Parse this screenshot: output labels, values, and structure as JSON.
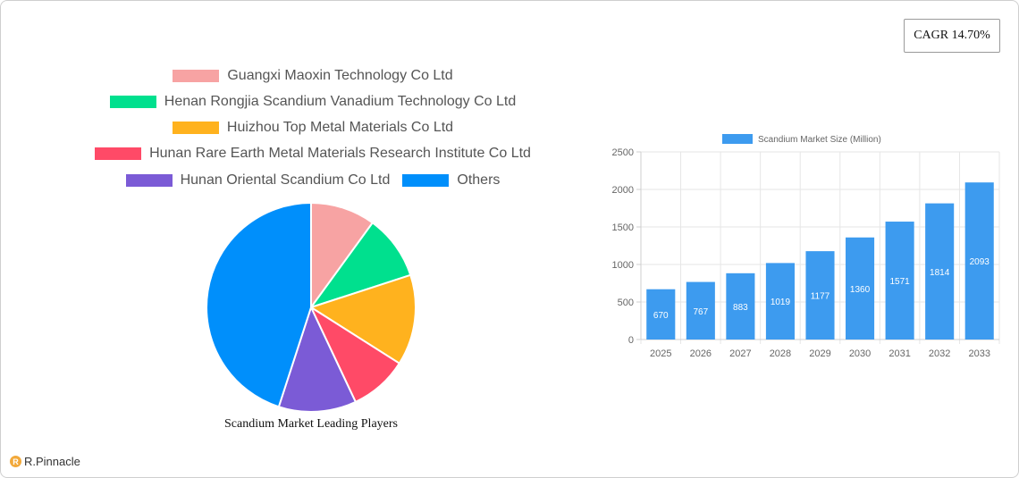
{
  "cagr_label": "CAGR 14.70%",
  "logo_text": "R.Pinnacle",
  "chart_data": [
    {
      "type": "pie",
      "title": "Scandium Market Leading Players",
      "legend_position": "top",
      "categories": [
        "Guangxi Maoxin Technology Co  Ltd",
        "Henan Rongjia Scandium Vanadium Technology Co  Ltd",
        "Huizhou Top Metal Materials Co  Ltd",
        "Hunan Rare Earth Metal Materials Research Institute Co  Ltd",
        "Hunan Oriental Scandium Co  Ltd",
        "Others"
      ],
      "values": [
        10,
        10,
        14,
        9,
        12,
        45
      ],
      "colors": [
        "#f7a3a3",
        "#00e08e",
        "#ffb21e",
        "#ff4a67",
        "#7b5bd6",
        "#008ffb"
      ]
    },
    {
      "type": "bar",
      "categories": [
        "2025",
        "2026",
        "2027",
        "2028",
        "2029",
        "2030",
        "2031",
        "2032",
        "2033"
      ],
      "series": [
        {
          "name": "Scandium Market Size (Million)",
          "values": [
            670,
            767,
            883,
            1019,
            1177,
            1360,
            1571,
            1814,
            2093
          ]
        }
      ],
      "ylim": [
        0,
        2500
      ],
      "yticks": [
        0,
        500,
        1000,
        1500,
        2000,
        2500
      ],
      "grid": true,
      "legend_position": "top",
      "color": "#3d9bef"
    }
  ]
}
